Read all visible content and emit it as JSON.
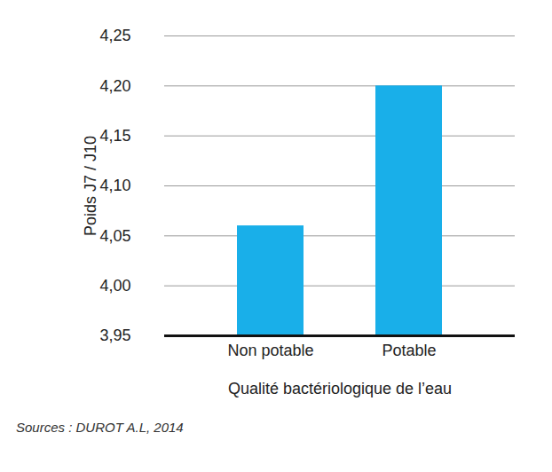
{
  "chart_data": {
    "type": "bar",
    "caption": "Sources : DUROT A.L, 2014",
    "x_label": "Qualité bactériologique de l’eau",
    "y_label": "Poids J7 / J10",
    "categories": [
      "Non potable",
      "Potable"
    ],
    "values": [
      4.06,
      4.2
    ],
    "color": "#19afe9",
    "ylim": [
      3.95,
      4.25
    ],
    "yticks": [
      {
        "value": 3.95,
        "label": "3,95"
      },
      {
        "value": 4.0,
        "label": "4,00"
      },
      {
        "value": 4.05,
        "label": "4,05"
      },
      {
        "value": 4.1,
        "label": "4,10"
      },
      {
        "value": 4.15,
        "label": "4,15"
      },
      {
        "value": 4.2,
        "label": "4,20"
      },
      {
        "value": 4.25,
        "label": "4,25"
      }
    ],
    "grid": true
  }
}
